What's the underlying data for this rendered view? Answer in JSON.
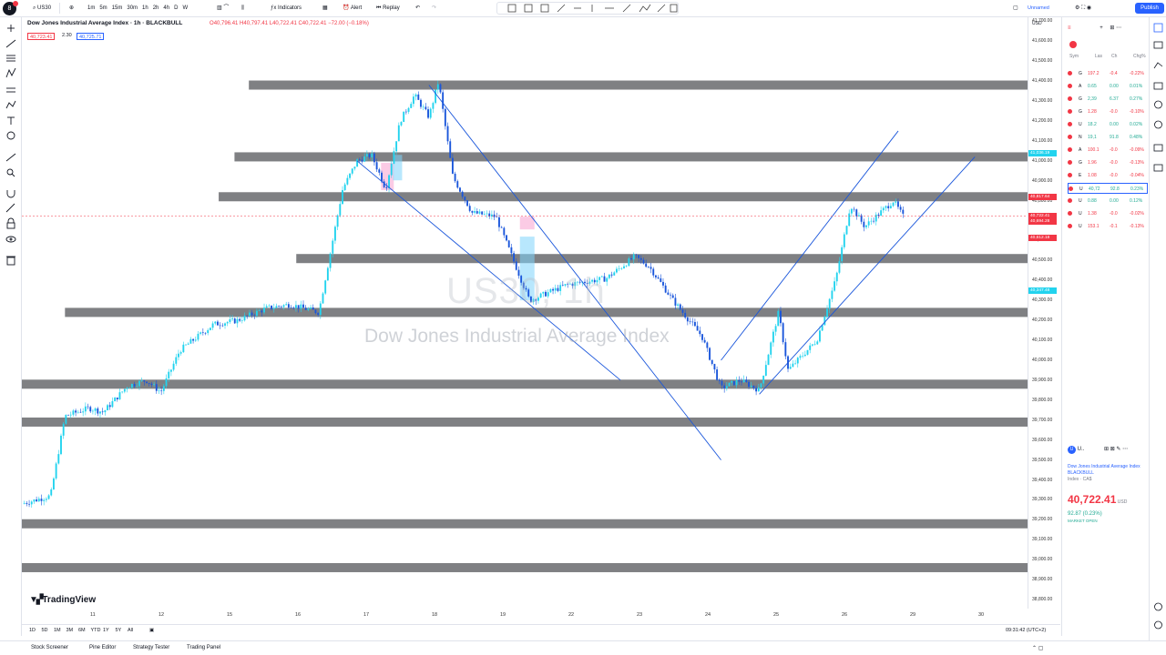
{
  "colors": {
    "up": "#22d3ee",
    "down": "#1a56db",
    "zone": "#7f8083",
    "trend": "#1a56db",
    "accent": "#2962ff",
    "neg": "#f23645",
    "pos": "#22ab94"
  },
  "topbar": {
    "symbol": "US30",
    "intervals": [
      "1m",
      "5m",
      "15m",
      "30m",
      "1h",
      "2h",
      "4h",
      "D",
      "W"
    ],
    "indicators": "Indicators",
    "alert": "Alert",
    "replay": "Replay",
    "layout": "Unnamed",
    "publish": "Publish"
  },
  "legend": {
    "title": "Dow Jones Industrial Average Index · 1h · BLACKBULL",
    "ohlc": "O40,796.41 H40,797.41 L40,722.41 C40,722.41 −72.00 (−0.18%)",
    "sell": "40,723.41",
    "spread": "2.30",
    "buy": "40,725.71"
  },
  "watermark": {
    "symbol": "US30, 1h",
    "name": "Dow Jones Industrial Average Index"
  },
  "brand": "TradingView",
  "price_axis": {
    "currency": "USD",
    "ticks": [
      "41,700.00",
      "41,600.00",
      "41,500.00",
      "41,400.00",
      "41,300.00",
      "41,200.00",
      "41,100.00",
      "41,000.00",
      "40,900.00",
      "40,800.00",
      "40,700.00",
      "40,600.00",
      "40,500.00",
      "40,400.00",
      "40,300.00",
      "40,200.00",
      "40,100.00",
      "40,000.00",
      "39,900.00",
      "39,800.00",
      "39,700.00",
      "39,600.00",
      "39,500.00",
      "39,400.00",
      "39,300.00",
      "39,200.00",
      "39,100.00",
      "39,000.00",
      "38,900.00",
      "38,800.00"
    ],
    "labels": [
      {
        "text": "41,036.19",
        "value": 41036,
        "color": "#22d3ee"
      },
      {
        "text": "40,817.64",
        "value": 40817,
        "color": "#f23645"
      },
      {
        "text": "40,722.41",
        "value": 40722,
        "color": "#f23645"
      },
      {
        "text": "40,694.28",
        "value": 40694,
        "color": "#f23645"
      },
      {
        "text": "40,612.18",
        "value": 40612,
        "color": "#f23645"
      },
      {
        "text": "40,347.48",
        "value": 40347,
        "color": "#22d3ee"
      }
    ]
  },
  "time_axis": {
    "ticks": [
      "11",
      "12",
      "15",
      "16",
      "17",
      "18",
      "19",
      "22",
      "23",
      "24",
      "25",
      "26",
      "29",
      "30"
    ]
  },
  "range_bar": {
    "ranges": [
      "1D",
      "5D",
      "1M",
      "3M",
      "6M",
      "YTD",
      "1Y",
      "5Y",
      "All"
    ],
    "clock": "09:31:42 (UTC+2)"
  },
  "bottom_tabs": [
    "Stock Screener",
    "Pine Editor",
    "Strategy Tester",
    "Trading Panel"
  ],
  "watchlist": {
    "columns": [
      "Sym",
      "Las",
      "Ch",
      "Chg%"
    ],
    "rows": [
      {
        "sym": "G",
        "last": "197.2",
        "chg": "-0.4",
        "pct": "-0.22%",
        "up": false
      },
      {
        "sym": "A",
        "last": "0.65",
        "chg": "0.00",
        "pct": "0.01%",
        "up": true
      },
      {
        "sym": "G",
        "last": "2,39",
        "chg": "6.37",
        "pct": "0.27%",
        "up": true
      },
      {
        "sym": "G",
        "last": "1.28",
        "chg": "-0.0",
        "pct": "-0.10%",
        "up": false
      },
      {
        "sym": "U",
        "last": "18.2",
        "chg": "0.00",
        "pct": "0.02%",
        "up": true
      },
      {
        "sym": "N",
        "last": "19,1",
        "chg": "91.8",
        "pct": "0.48%",
        "up": true
      },
      {
        "sym": "A",
        "last": "100.1",
        "chg": "-0.0",
        "pct": "-0.09%",
        "up": false
      },
      {
        "sym": "G",
        "last": "1.96",
        "chg": "-0.0",
        "pct": "-0.13%",
        "up": false
      },
      {
        "sym": "E",
        "last": "1.08",
        "chg": "-0.0",
        "pct": "-0.04%",
        "up": false
      },
      {
        "sym": "U",
        "last": "40,72",
        "chg": "92.8",
        "pct": "0.23%",
        "up": true,
        "selected": true
      },
      {
        "sym": "U",
        "last": "0.88",
        "chg": "0.00",
        "pct": "0.12%",
        "up": true
      },
      {
        "sym": "U",
        "last": "1.38",
        "chg": "-0.0",
        "pct": "-0.02%",
        "up": false
      },
      {
        "sym": "U",
        "last": "153.1",
        "chg": "-0.1",
        "pct": "-0.13%",
        "up": false
      }
    ]
  },
  "detail": {
    "ticker": "U..",
    "name": "Dow Jones Industrial Average Index",
    "exchange": "BLACKBULL",
    "type": "Index · CA$",
    "price": "40,722.41",
    "currency": "USD",
    "change": "92.87 (0.23%)",
    "status": "MARKET OPEN"
  },
  "chart_data": {
    "type": "candlestick",
    "symbol": "US30",
    "interval": "1h",
    "ylim": [
      38750,
      41720
    ],
    "zones": [
      41380,
      41020,
      40820,
      40510,
      40240,
      39880,
      39690,
      39180,
      38960
    ],
    "trendlines": [
      {
        "t0": 17.0,
        "p0": 41000,
        "t1": 22.5,
        "p1": 39900
      },
      {
        "t0": 18.5,
        "p0": 41380,
        "t1": 24.6,
        "p1": 39500
      },
      {
        "t0": 24.6,
        "p0": 40000,
        "t1": 28.3,
        "p1": 41150
      },
      {
        "t0": 25.4,
        "p0": 39830,
        "t1": 29.9,
        "p1": 41020
      }
    ],
    "path": [
      [
        10.0,
        39280
      ],
      [
        10.6,
        39320
      ],
      [
        10.9,
        39720
      ],
      [
        11.4,
        39760
      ],
      [
        11.7,
        39740
      ],
      [
        12.2,
        39870
      ],
      [
        12.6,
        39900
      ],
      [
        12.9,
        39840
      ],
      [
        13.3,
        40050
      ],
      [
        14.0,
        40180
      ],
      [
        14.5,
        40200
      ],
      [
        15.1,
        40260
      ],
      [
        15.6,
        40280
      ],
      [
        16.2,
        40240
      ],
      [
        16.7,
        40860
      ],
      [
        17.0,
        41000
      ],
      [
        17.3,
        41030
      ],
      [
        17.6,
        40860
      ],
      [
        17.9,
        41200
      ],
      [
        18.2,
        41330
      ],
      [
        18.5,
        41220
      ],
      [
        18.7,
        41400
      ],
      [
        19.0,
        40920
      ],
      [
        19.4,
        40740
      ],
      [
        19.9,
        40720
      ],
      [
        20.2,
        40540
      ],
      [
        20.6,
        40300
      ],
      [
        21.4,
        40380
      ],
      [
        22.2,
        40410
      ],
      [
        22.8,
        40520
      ],
      [
        23.1,
        40470
      ],
      [
        23.6,
        40300
      ],
      [
        24.2,
        40120
      ],
      [
        24.6,
        39860
      ],
      [
        25.0,
        39900
      ],
      [
        25.4,
        39850
      ],
      [
        25.8,
        40240
      ],
      [
        26.0,
        39950
      ],
      [
        26.6,
        40100
      ],
      [
        27.0,
        40410
      ],
      [
        27.3,
        40780
      ],
      [
        27.6,
        40670
      ],
      [
        28.2,
        40800
      ],
      [
        28.4,
        40722
      ]
    ]
  }
}
